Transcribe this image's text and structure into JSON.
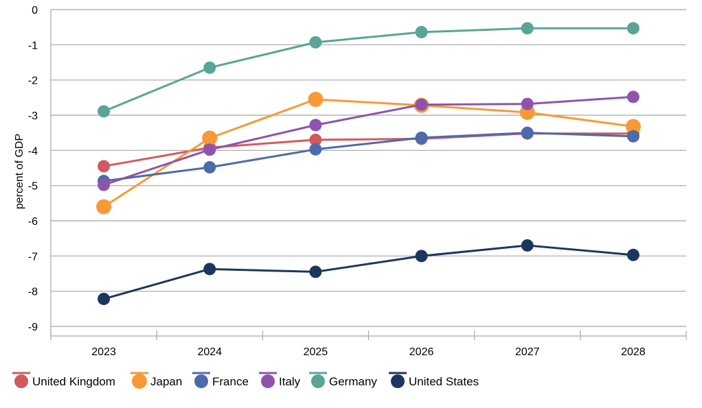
{
  "chart_data": {
    "type": "line",
    "title": "",
    "xlabel": "",
    "ylabel": "percent of GDP",
    "categories": [
      "2023",
      "2024",
      "2025",
      "2026",
      "2027",
      "2028"
    ],
    "ylim": [
      -9,
      0
    ],
    "yticks": [
      0,
      -1,
      -2,
      -3,
      -4,
      -5,
      -6,
      -7,
      -8,
      -9
    ],
    "grid": true,
    "legend_position": "bottom",
    "series": [
      {
        "name": "United Kingdom",
        "color": "#d05a5e",
        "values": [
          -4.45,
          -3.92,
          -3.7,
          -3.67,
          -3.52,
          -3.52
        ]
      },
      {
        "name": "Japan",
        "color": "#f79a36",
        "values": [
          -5.6,
          -3.65,
          -2.55,
          -2.72,
          -2.92,
          -3.32
        ]
      },
      {
        "name": "France",
        "color": "#4d6aaa",
        "values": [
          -4.87,
          -4.48,
          -3.97,
          -3.64,
          -3.5,
          -3.6
        ]
      },
      {
        "name": "Italy",
        "color": "#8e54ad",
        "values": [
          -4.98,
          -3.98,
          -3.28,
          -2.7,
          -2.68,
          -2.48
        ]
      },
      {
        "name": "Germany",
        "color": "#58a595",
        "values": [
          -2.89,
          -1.65,
          -0.93,
          -0.64,
          -0.53,
          -0.53
        ]
      },
      {
        "name": "United States",
        "color": "#1d3660",
        "values": [
          -8.22,
          -7.37,
          -7.45,
          -7.0,
          -6.7,
          -6.97
        ]
      }
    ]
  }
}
